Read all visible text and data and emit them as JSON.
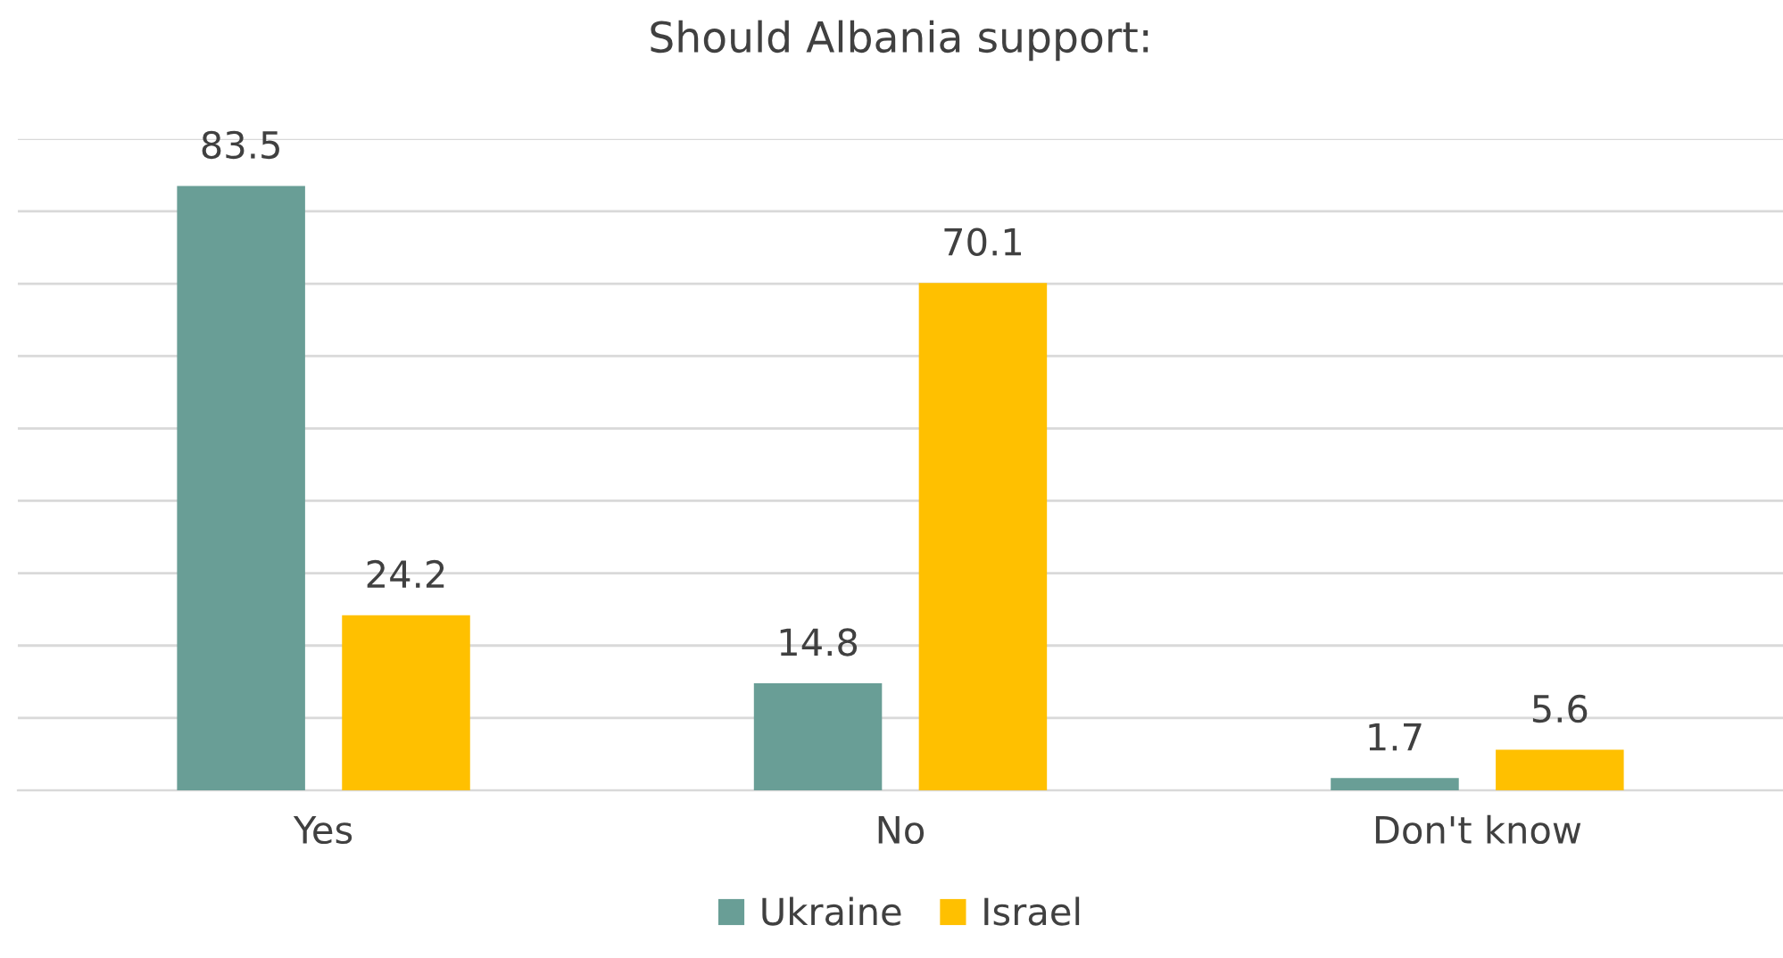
{
  "chart_data": {
    "type": "bar",
    "title": "Should Albania support:",
    "categories": [
      "Yes",
      "No",
      "Don't know"
    ],
    "series": [
      {
        "name": "Ukraine",
        "color": "#699e96",
        "values": [
          83.5,
          14.8,
          1.7
        ]
      },
      {
        "name": "Israel",
        "color": "#ffc000",
        "values": [
          24.2,
          70.1,
          5.6
        ]
      }
    ],
    "ylim": [
      0,
      90
    ],
    "yticks": [
      {
        "value": 0,
        "label": null
      },
      {
        "value": 10,
        "label": null
      },
      {
        "value": 20,
        "label": null
      },
      {
        "value": 30,
        "label": null
      },
      {
        "value": 40,
        "label": null
      },
      {
        "value": 50,
        "label": null
      },
      {
        "value": 60,
        "label": null
      },
      {
        "value": 70,
        "label": null
      },
      {
        "value": 80,
        "label": null
      },
      {
        "value": 90,
        "label": null
      }
    ],
    "grid": "y",
    "data_labels": true,
    "legend": "bottom",
    "tick_labels": "x"
  }
}
